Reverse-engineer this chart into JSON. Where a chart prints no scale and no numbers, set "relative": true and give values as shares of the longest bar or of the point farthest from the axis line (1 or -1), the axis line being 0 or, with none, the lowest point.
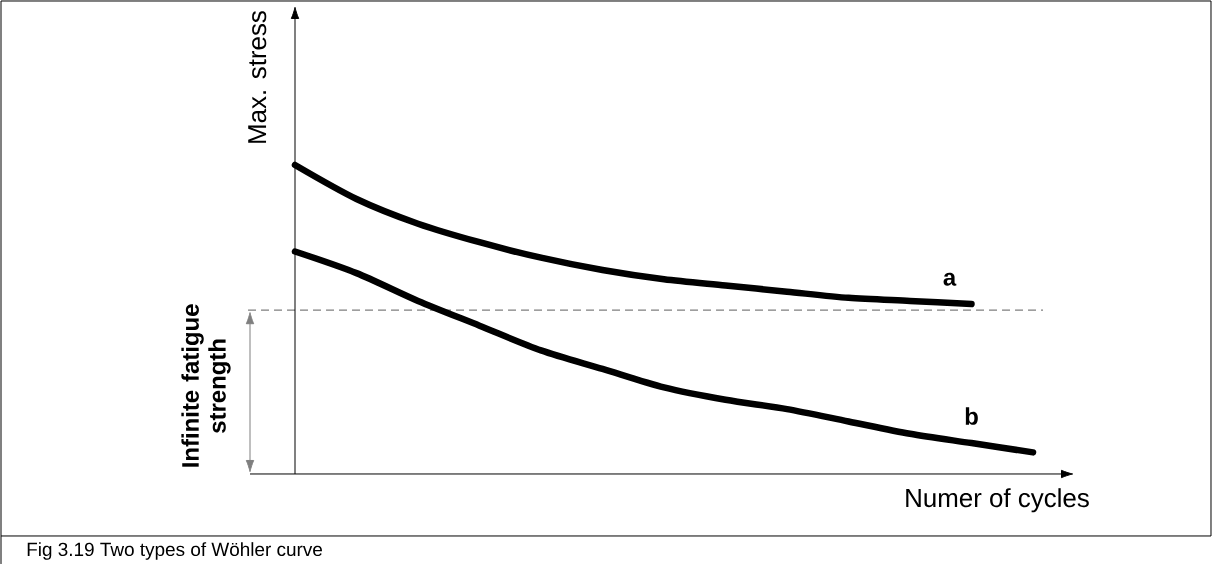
{
  "chart_data": {
    "type": "line",
    "relative": true,
    "xlabel": "Numer of cycles",
    "ylabel": "Max. stress",
    "categories": [
      null,
      null,
      null,
      null,
      null,
      null,
      null,
      null,
      null,
      null,
      null,
      null,
      null
    ],
    "series": [
      {
        "name": "a",
        "color": "#000000",
        "values": [
          1.0,
          0.89,
          0.81,
          0.75,
          0.7,
          0.66,
          0.63,
          0.61,
          0.59,
          0.57,
          0.56,
          0.55,
          null
        ]
      },
      {
        "name": "b",
        "color": "#000000",
        "values": [
          0.72,
          0.65,
          0.56,
          0.48,
          0.4,
          0.34,
          0.28,
          0.24,
          0.21,
          0.17,
          0.13,
          0.1,
          0.07
        ]
      }
    ],
    "ref_lines": [
      {
        "axis": "y",
        "value": 0.53,
        "label": "Infinite fatigue strength",
        "color": "#7f7f7f",
        "line_style": "dashed"
      }
    ],
    "line_style": "solid",
    "annotations": [
      "Fig 3.19 Two types of Wöhler curve"
    ]
  }
}
